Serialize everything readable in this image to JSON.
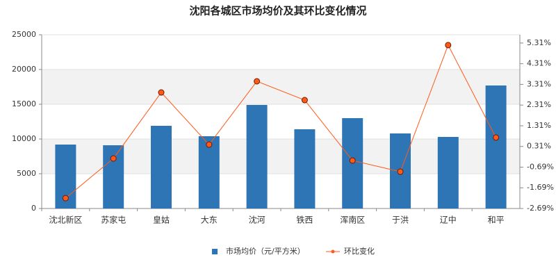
{
  "chart_data": {
    "type": "bar-line",
    "title": "沈阳各城区市场均价及其环比变化情况",
    "categories": [
      "沈北新区",
      "苏家屯",
      "皇姑",
      "大东",
      "沈河",
      "铁西",
      "浑南区",
      "于洪",
      "辽中",
      "和平"
    ],
    "series": [
      {
        "name": "市场均价（元/平方米）",
        "type": "bar",
        "color": "#2e75b6",
        "values": [
          9200,
          9100,
          11900,
          10400,
          14900,
          11400,
          13000,
          10800,
          10300,
          17700
        ]
      },
      {
        "name": "环比变化",
        "type": "line",
        "axis": "y2",
        "color": "#ff5a1a",
        "values": [
          -2.19,
          -0.27,
          2.92,
          0.4,
          3.46,
          2.55,
          -0.37,
          -0.91,
          5.21,
          0.74
        ]
      }
    ],
    "ylim": [
      0,
      25000
    ],
    "yticks": [
      0,
      5000,
      10000,
      15000,
      20000,
      25000
    ],
    "y2lim": [
      -2.69,
      5.71
    ],
    "y2ticks": [
      {
        "value": -2.69,
        "label": "-2.69%"
      },
      {
        "value": -1.69,
        "label": "-1.69%"
      },
      {
        "value": -0.69,
        "label": "-0.69%"
      },
      {
        "value": 0.31,
        "label": "0.31%"
      },
      {
        "value": 1.31,
        "label": "1.31%"
      },
      {
        "value": 2.31,
        "label": "2.31%"
      },
      {
        "value": 3.31,
        "label": "3.31%"
      },
      {
        "value": 4.31,
        "label": "4.31%"
      },
      {
        "value": 5.31,
        "label": "5.31%"
      }
    ],
    "grid": true
  }
}
